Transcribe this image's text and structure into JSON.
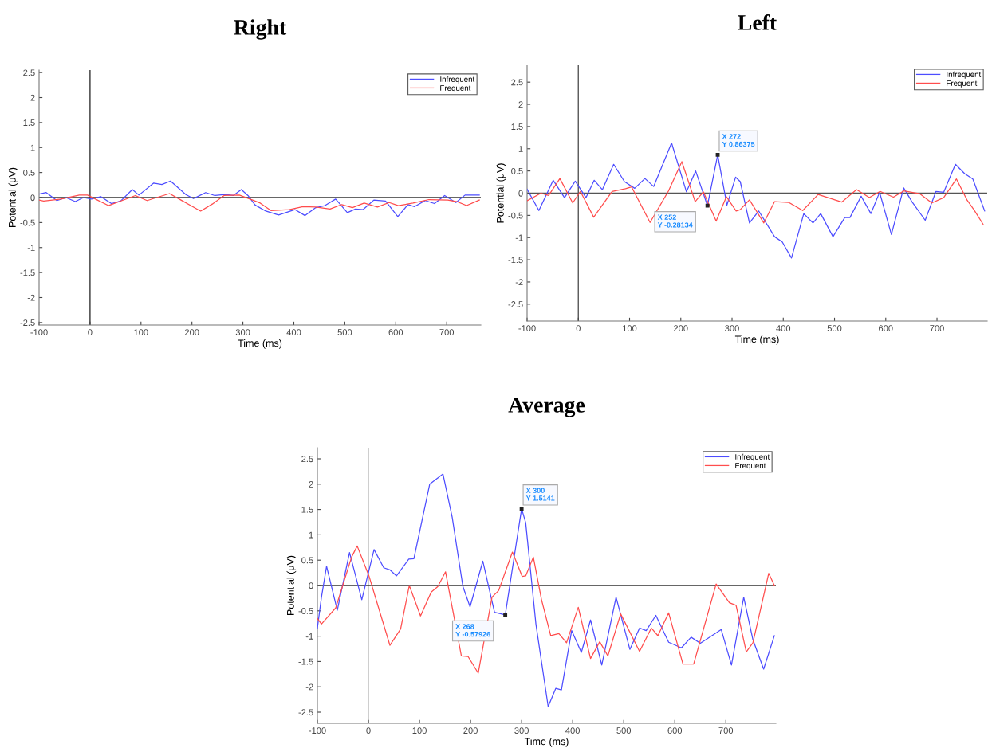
{
  "chart_data": [
    {
      "type": "line",
      "title": "Right",
      "xlabel": "Time (ms)",
      "ylabel": "Potential (μV)",
      "xlim": [
        -100,
        767
      ],
      "ylim": [
        -2.55,
        2.55
      ],
      "xticks": [
        -100,
        0,
        100,
        200,
        300,
        400,
        500,
        600,
        700
      ],
      "yticks": [
        -2.5,
        -2,
        -1.5,
        -1,
        -0.5,
        0,
        0.5,
        1,
        1.5,
        2,
        2.5
      ],
      "legend": "top right",
      "grid": false,
      "ref_lines": [
        {
          "axis": "x",
          "value": 0,
          "color": "#333333"
        },
        {
          "axis": "y",
          "value": 0,
          "color": "#333333"
        }
      ],
      "series": [
        {
          "name": "Infrequent",
          "color": "#4d4dff",
          "x": [
            -100,
            -86,
            -65,
            -47,
            -29,
            -13,
            3,
            21,
            42,
            60,
            83,
            96,
            125,
            141,
            158,
            188,
            203,
            227,
            245,
            266,
            281,
            297,
            310,
            324,
            345,
            370,
            402,
            422,
            443,
            461,
            482,
            505,
            521,
            536,
            557,
            580,
            604,
            624,
            637,
            658,
            676,
            696,
            718,
            736,
            764
          ],
          "values": [
            0.07,
            0.1,
            -0.06,
            0,
            -0.08,
            0,
            -0.03,
            0.02,
            -0.12,
            -0.07,
            0.16,
            0.05,
            0.29,
            0.26,
            0.33,
            0.06,
            -0.02,
            0.1,
            0.04,
            0.06,
            0.04,
            0.16,
            0.04,
            -0.15,
            -0.27,
            -0.35,
            -0.24,
            -0.36,
            -0.2,
            -0.16,
            -0.03,
            -0.3,
            -0.23,
            -0.24,
            -0.05,
            -0.07,
            -0.38,
            -0.14,
            -0.18,
            -0.06,
            -0.12,
            0.04,
            -0.1,
            0.05,
            0.05
          ]
        },
        {
          "name": "Frequent",
          "color": "#ff4d4d",
          "x": [
            -100,
            -91,
            -57,
            -21,
            -5,
            36,
            68,
            89,
            112,
            156,
            182,
            217,
            240,
            263,
            293,
            319,
            334,
            355,
            391,
            418,
            443,
            471,
            494,
            515,
            538,
            564,
            587,
            605,
            634,
            665,
            702,
            720,
            739,
            764
          ],
          "values": [
            -0.05,
            -0.07,
            -0.03,
            0.05,
            0.05,
            -0.16,
            -0.04,
            0.04,
            -0.06,
            0.08,
            -0.07,
            -0.27,
            -0.13,
            0.04,
            0.05,
            -0.05,
            -0.11,
            -0.26,
            -0.24,
            -0.18,
            -0.19,
            -0.23,
            -0.14,
            -0.2,
            -0.11,
            -0.19,
            -0.1,
            -0.16,
            -0.11,
            -0.04,
            -0.05,
            -0.08,
            -0.16,
            -0.05
          ]
        }
      ]
    },
    {
      "type": "line",
      "title": "Left",
      "xlabel": "Time (ms)",
      "ylabel": "Potential (μV)",
      "xlim": [
        -100,
        798
      ],
      "ylim": [
        -2.88,
        2.88
      ],
      "xticks": [
        -100,
        0,
        100,
        200,
        300,
        400,
        500,
        600,
        700
      ],
      "yticks": [
        -2.5,
        -2,
        -1.5,
        -1,
        -0.5,
        0,
        0.5,
        1,
        1.5,
        2,
        2.5
      ],
      "legend": "top right",
      "grid": false,
      "ref_lines": [
        {
          "axis": "x",
          "value": 0,
          "color": "#555555"
        },
        {
          "axis": "y",
          "value": 0,
          "color": "#555555"
        }
      ],
      "annotations": [
        {
          "text": "X 272\nY 0.86375",
          "x": 272,
          "y": 0.86375
        },
        {
          "text": "X 252\nY -0.28134",
          "x": 252,
          "y": -0.28134
        }
      ],
      "series": [
        {
          "name": "Infrequent",
          "color": "#4d4dff",
          "x": [
            -100,
            -77,
            -49,
            -27,
            -6,
            15,
            31,
            47,
            69,
            90,
            110,
            130,
            147,
            182,
            211,
            229,
            252,
            272,
            290,
            307,
            316,
            334,
            352,
            383,
            398,
            416,
            440,
            458,
            473,
            497,
            520,
            530,
            552,
            571,
            588,
            611,
            635,
            651,
            677,
            698,
            713,
            736,
            754,
            770,
            793
          ],
          "values": [
            0.09,
            -0.39,
            0.29,
            -0.1,
            0.27,
            -0.1,
            0.29,
            0.08,
            0.65,
            0.26,
            0.11,
            0.33,
            0.15,
            1.13,
            0.03,
            0.5,
            -0.28134,
            0.86375,
            -0.27,
            0.36,
            0.26,
            -0.67,
            -0.4,
            -0.98,
            -1.1,
            -1.46,
            -0.46,
            -0.67,
            -0.46,
            -0.98,
            -0.55,
            -0.55,
            -0.07,
            -0.46,
            0.02,
            -0.93,
            0.12,
            -0.19,
            -0.61,
            0.04,
            0.02,
            0.65,
            0.44,
            0.32,
            -0.4
          ]
        },
        {
          "name": "Frequent",
          "color": "#ff4d4d",
          "x": [
            -100,
            -73,
            -58,
            -36,
            -11,
            4,
            30,
            66,
            92,
            104,
            140,
            176,
            202,
            228,
            244,
            269,
            289,
            308,
            316,
            334,
            362,
            383,
            411,
            438,
            468,
            514,
            543,
            568,
            589,
            615,
            635,
            666,
            690,
            713,
            738,
            759,
            772,
            790
          ],
          "values": [
            -0.17,
            0.0,
            -0.05,
            0.33,
            -0.22,
            0.04,
            -0.54,
            0.04,
            0.1,
            0.14,
            -0.66,
            0.05,
            0.71,
            -0.19,
            0.03,
            -0.63,
            -0.08,
            -0.4,
            -0.37,
            -0.15,
            -0.67,
            -0.19,
            -0.21,
            -0.39,
            -0.03,
            -0.2,
            0.08,
            -0.1,
            0.04,
            -0.09,
            0.05,
            -0.01,
            -0.22,
            -0.1,
            0.32,
            -0.16,
            -0.37,
            -0.7
          ]
        }
      ]
    },
    {
      "type": "line",
      "title": "Average",
      "xlabel": "Time (ms)",
      "ylabel": "Potential (μV)",
      "xlim": [
        -100,
        798
      ],
      "ylim": [
        -2.72,
        2.72
      ],
      "xticks": [
        -100,
        0,
        100,
        200,
        300,
        400,
        500,
        600,
        700
      ],
      "yticks": [
        -2.5,
        -2,
        -1.5,
        -1,
        -0.5,
        0,
        0.5,
        1,
        1.5,
        2,
        2.5
      ],
      "legend": "top right",
      "grid": false,
      "ref_lines": [
        {
          "axis": "x",
          "value": 0,
          "color": "#bbbbbb"
        },
        {
          "axis": "y",
          "value": 0,
          "color": "#333333"
        }
      ],
      "annotations": [
        {
          "text": "X 300\nY 1.5141",
          "x": 300,
          "y": 1.5141
        },
        {
          "text": "X 268\nY -0.57926",
          "x": 268,
          "y": -0.57926
        }
      ],
      "series": [
        {
          "name": "Infrequent",
          "color": "#4d4dff",
          "x": [
            -100,
            -92,
            -82,
            -61,
            -37,
            -13,
            11,
            30,
            42,
            55,
            79,
            89,
            120,
            146,
            164,
            185,
            199,
            224,
            247,
            268,
            300,
            308,
            328,
            352,
            367,
            378,
            398,
            417,
            435,
            457,
            485,
            512,
            531,
            544,
            563,
            588,
            613,
            632,
            650,
            665,
            691,
            711,
            735,
            753,
            774,
            795
          ],
          "values": [
            -0.84,
            -0.23,
            0.38,
            -0.49,
            0.65,
            -0.28,
            0.71,
            0.35,
            0.31,
            0.19,
            0.52,
            0.53,
            2.0,
            2.2,
            1.35,
            -0.02,
            -0.42,
            0.48,
            -0.53,
            -0.57926,
            1.5141,
            1.24,
            -0.76,
            -2.39,
            -2.03,
            -2.06,
            -0.89,
            -1.32,
            -0.68,
            -1.57,
            -0.23,
            -1.26,
            -0.84,
            -0.89,
            -0.59,
            -1.12,
            -1.23,
            -1.02,
            -1.14,
            -1.04,
            -0.87,
            -1.57,
            -0.23,
            -1.07,
            -1.65,
            -0.99
          ]
        },
        {
          "name": "Frequent",
          "color": "#ff4d4d",
          "x": [
            -100,
            -92,
            -64,
            -33,
            -22,
            1,
            42,
            63,
            80,
            102,
            123,
            136,
            151,
            182,
            195,
            215,
            242,
            255,
            282,
            301,
            308,
            323,
            339,
            357,
            373,
            388,
            411,
            435,
            453,
            469,
            494,
            531,
            554,
            567,
            588,
            616,
            637,
            681,
            707,
            720,
            740,
            753,
            784,
            795
          ],
          "values": [
            -0.65,
            -0.76,
            -0.44,
            0.56,
            0.78,
            0.19,
            -1.18,
            -0.86,
            0.0,
            -0.6,
            -0.13,
            -0.02,
            0.27,
            -1.39,
            -1.4,
            -1.73,
            -0.23,
            -0.1,
            0.66,
            0.18,
            0.19,
            0.56,
            -0.28,
            -0.99,
            -0.95,
            -1.13,
            -0.43,
            -1.44,
            -1.11,
            -1.39,
            -0.56,
            -1.3,
            -0.84,
            -0.99,
            -0.54,
            -1.55,
            -1.55,
            0.03,
            -0.34,
            -0.39,
            -1.31,
            -1.13,
            0.24,
            0.0
          ]
        }
      ]
    }
  ]
}
